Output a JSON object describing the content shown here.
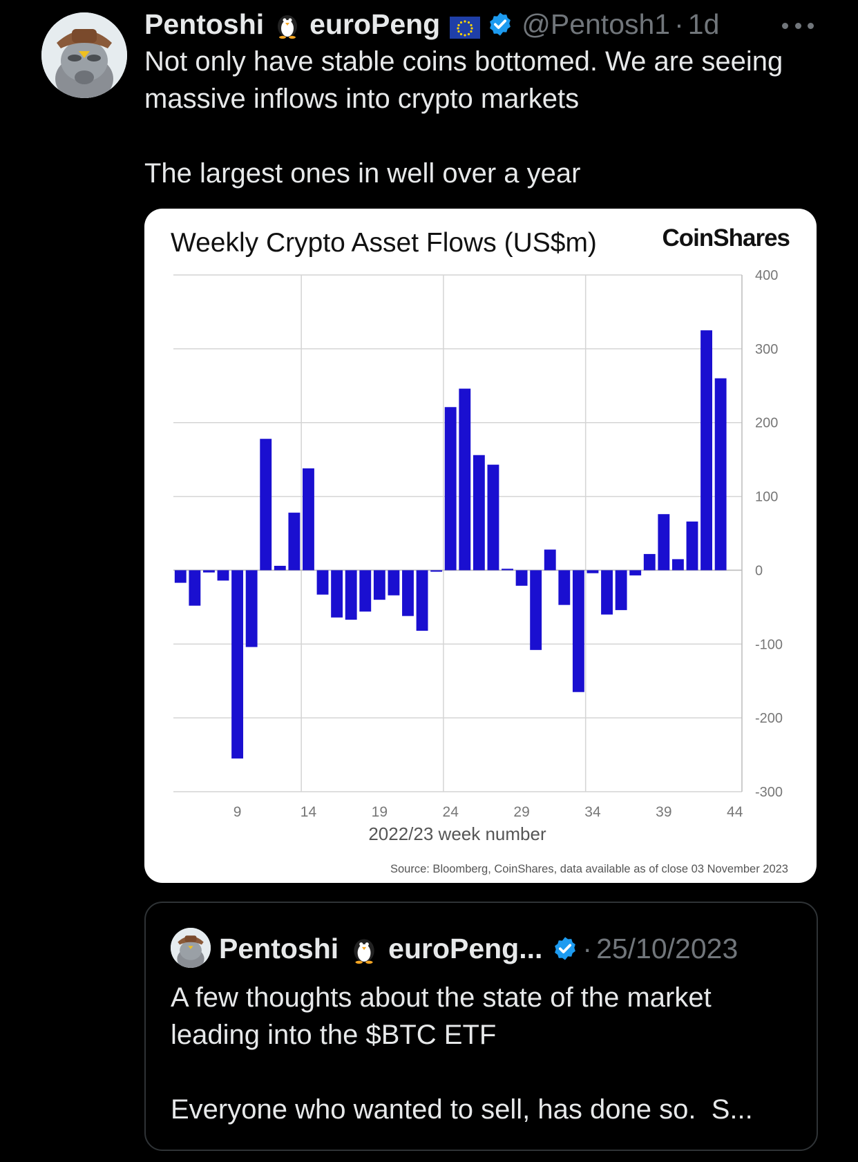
{
  "tweet": {
    "display_name": "Pentoshi",
    "name_suffix": "euroPeng",
    "handle": "@Pentosh1",
    "separator": "·",
    "time": "1d",
    "text": "Not only have stable coins bottomed. We are seeing massive inflows into crypto markets\n\nThe largest ones in well over a year",
    "icons": [
      "avatar",
      "penguin-emoji-icon",
      "eu-flag-icon",
      "verified-badge-icon",
      "more-options-icon"
    ]
  },
  "media": {
    "brand": "CoinShares",
    "source": "Source: Bloomberg, CoinShares, data available as of close 03 November 2023"
  },
  "chart_data": {
    "type": "bar",
    "title": "Weekly Crypto Asset Flows (US$m)",
    "xlabel": "2022/23 week number",
    "ylabel": "",
    "x_tick_labels": [
      "9",
      "14",
      "19",
      "24",
      "29",
      "34",
      "39",
      "44"
    ],
    "y_tick_labels": [
      "400",
      "300",
      "200",
      "100",
      "0",
      "-100",
      "-200",
      "-300"
    ],
    "ylim": [
      -300,
      400
    ],
    "y_axis_side": "right",
    "grid": true,
    "bar_color": "#1a0fd0",
    "weeks": [
      5,
      6,
      7,
      8,
      9,
      10,
      11,
      12,
      13,
      14,
      15,
      16,
      17,
      18,
      19,
      20,
      21,
      22,
      23,
      24,
      25,
      26,
      27,
      28,
      29,
      30,
      31,
      32,
      33,
      34,
      35,
      36,
      37,
      38,
      39,
      40,
      41,
      42,
      43,
      44
    ],
    "values": [
      -17,
      -48,
      -3,
      -14,
      -255,
      -104,
      178,
      6,
      78,
      138,
      -33,
      -64,
      -67,
      -56,
      -40,
      -34,
      -62,
      -82,
      -2,
      221,
      246,
      156,
      143,
      2,
      -21,
      -108,
      28,
      -47,
      -165,
      -4,
      -60,
      -54,
      -7,
      22,
      76,
      15,
      66,
      325,
      260,
      0
    ]
  },
  "quote": {
    "display_name": "Pentoshi",
    "name_suffix": "euroPeng...",
    "separator": "·",
    "date": "25/10/2023",
    "text": "A few thoughts about the state of the market leading into the $BTC ETF\n\nEveryone who wanted to sell, has done so.  S..."
  }
}
